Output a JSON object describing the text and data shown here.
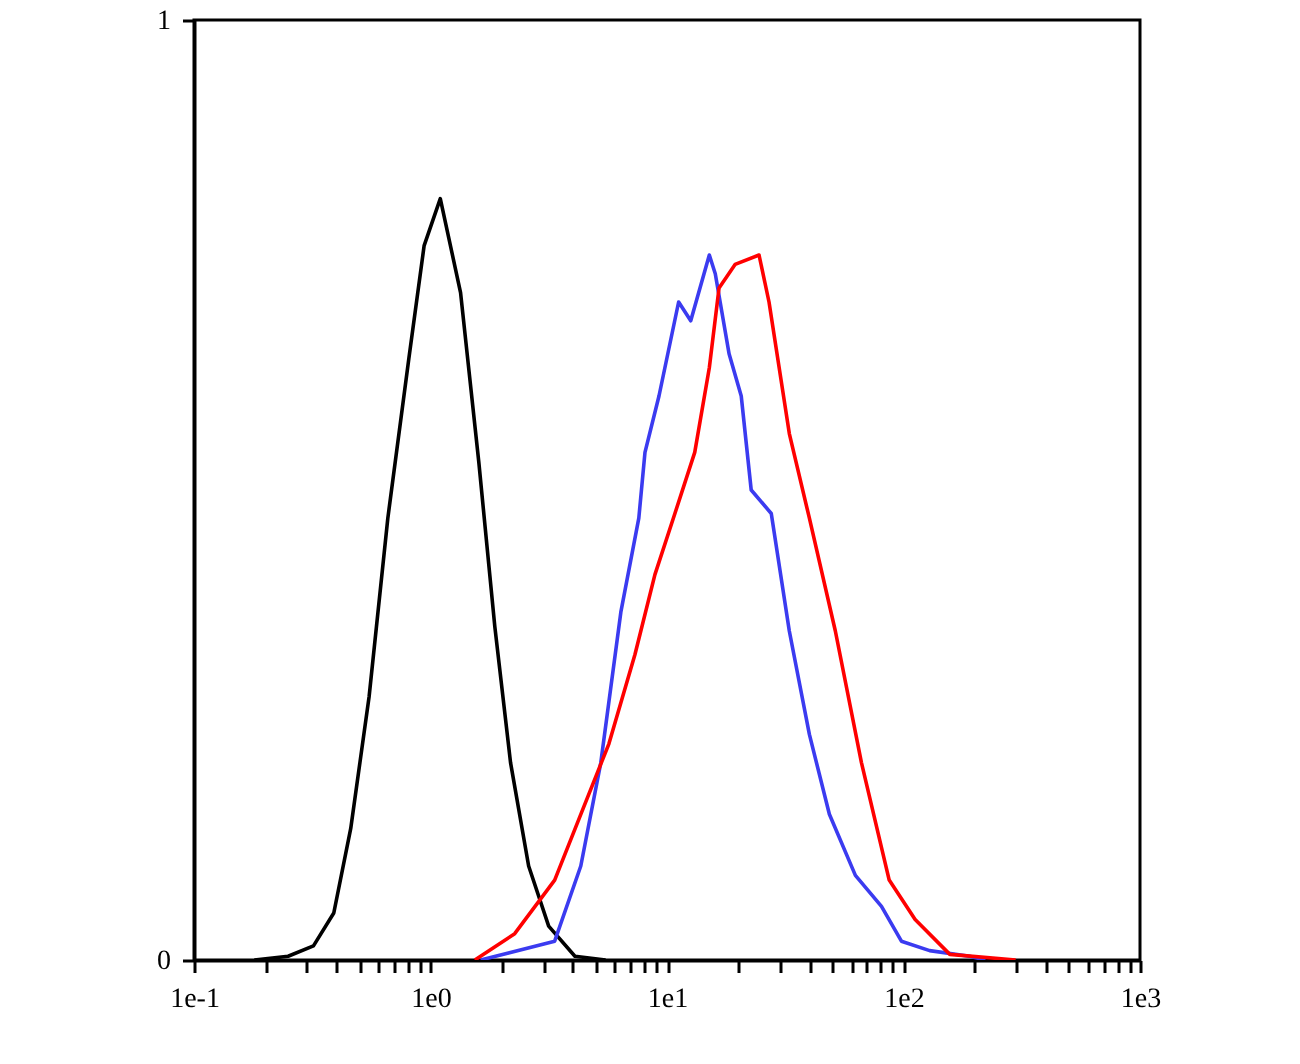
{
  "chart_data": {
    "type": "line",
    "log": "x",
    "xlim": [
      0.1,
      1000
    ],
    "ylim": [
      0,
      1
    ],
    "yticks": [
      0,
      1
    ],
    "grid": false,
    "xticks": [
      {
        "value": 0.1,
        "label": "1e-1"
      },
      {
        "value": 0.2,
        "label": null
      },
      {
        "value": 0.3,
        "label": null
      },
      {
        "value": 0.4,
        "label": null
      },
      {
        "value": 0.5,
        "label": null
      },
      {
        "value": 0.6,
        "label": null
      },
      {
        "value": 0.7,
        "label": null
      },
      {
        "value": 0.8,
        "label": null
      },
      {
        "value": 0.9,
        "label": null
      },
      {
        "value": 1,
        "label": "1e0"
      },
      {
        "value": 2,
        "label": null
      },
      {
        "value": 3,
        "label": null
      },
      {
        "value": 4,
        "label": null
      },
      {
        "value": 5,
        "label": null
      },
      {
        "value": 6,
        "label": null
      },
      {
        "value": 7,
        "label": null
      },
      {
        "value": 8,
        "label": null
      },
      {
        "value": 9,
        "label": null
      },
      {
        "value": 10,
        "label": "1e1"
      },
      {
        "value": 20,
        "label": null
      },
      {
        "value": 30,
        "label": null
      },
      {
        "value": 40,
        "label": null
      },
      {
        "value": 50,
        "label": null
      },
      {
        "value": 60,
        "label": null
      },
      {
        "value": 70,
        "label": null
      },
      {
        "value": 80,
        "label": null
      },
      {
        "value": 90,
        "label": null
      },
      {
        "value": 100,
        "label": "1e2"
      },
      {
        "value": 200,
        "label": null
      },
      {
        "value": 300,
        "label": null
      },
      {
        "value": 400,
        "label": null
      },
      {
        "value": 500,
        "label": null
      },
      {
        "value": 600,
        "label": null
      },
      {
        "value": 700,
        "label": null
      },
      {
        "value": 800,
        "label": null
      },
      {
        "value": 900,
        "label": null
      },
      {
        "value": 1000,
        "label": "1e3"
      }
    ],
    "series": [
      {
        "color": "#000000",
        "x": [
          0.18,
          0.25,
          0.32,
          0.39,
          0.46,
          0.55,
          0.66,
          0.81,
          0.94,
          1.1,
          1.34,
          1.6,
          1.87,
          2.18,
          2.6,
          3.16,
          4.08,
          5.5
        ],
        "values": [
          0,
          0.004,
          0.015,
          0.05,
          0.14,
          0.28,
          0.47,
          0.64,
          0.76,
          0.81,
          0.71,
          0.53,
          0.355,
          0.21,
          0.1,
          0.036,
          0.004,
          0
        ]
      },
      {
        "color": "#3b3bf0",
        "x": [
          1.63,
          3.35,
          4.32,
          5.25,
          6.38,
          7.6,
          8.07,
          9.25,
          11.2,
          12.6,
          15.1,
          16,
          18.3,
          20.6,
          22.7,
          27.6,
          32.9,
          40,
          48.6,
          62.6,
          80.7,
          98,
          129,
          190,
          222
        ],
        "values": [
          0,
          0.02,
          0.1,
          0.21,
          0.37,
          0.47,
          0.54,
          0.6,
          0.7,
          0.68,
          0.75,
          0.73,
          0.645,
          0.6,
          0.5,
          0.475,
          0.35,
          0.24,
          0.155,
          0.09,
          0.057,
          0.02,
          0.01,
          0.004,
          0
        ]
      },
      {
        "color": "#ff0000",
        "x": [
          1.54,
          2.27,
          3.35,
          4.32,
          5.68,
          7.32,
          8.89,
          10.8,
          13.1,
          15.1,
          16.6,
          19.4,
          24.5,
          27,
          32.9,
          40,
          51.5,
          66.4,
          87,
          112,
          157,
          298
        ],
        "values": [
          0,
          0.028,
          0.085,
          0.155,
          0.23,
          0.325,
          0.41,
          0.475,
          0.54,
          0.63,
          0.715,
          0.74,
          0.75,
          0.7,
          0.56,
          0.47,
          0.35,
          0.21,
          0.085,
          0.043,
          0.006,
          0
        ]
      }
    ]
  }
}
